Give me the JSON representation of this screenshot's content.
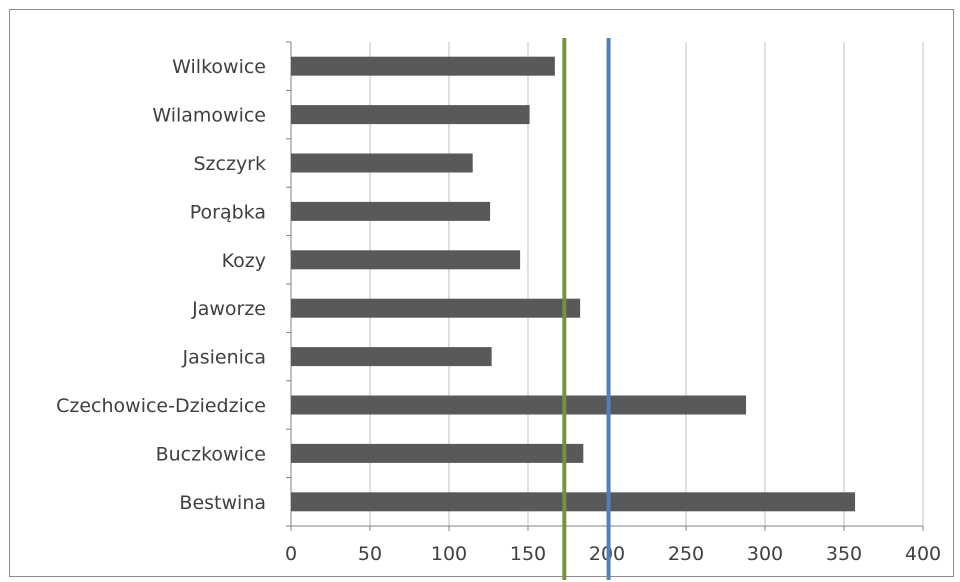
{
  "chart_data": {
    "type": "bar",
    "orientation": "horizontal",
    "title": "",
    "xlabel": "",
    "ylabel": "",
    "categories": [
      "Bestwina",
      "Buczkowice",
      "Czechowice-Dziedzice",
      "Jasienica",
      "Jaworze",
      "Kozy",
      "Porąbka",
      "Szczyrk",
      "Wilamowice",
      "Wilkowice"
    ],
    "series": [
      {
        "values": [
          357,
          185,
          288,
          127,
          183,
          145,
          126,
          115,
          151,
          167
        ]
      }
    ],
    "xlim": [
      0,
      400
    ],
    "xticks": [
      0,
      50,
      100,
      150,
      200,
      250,
      300,
      350,
      400
    ],
    "grid": true,
    "legend": "none",
    "reference_lines": [
      {
        "value": 173,
        "color": "#76923c"
      },
      {
        "value": 201,
        "color": "#4f81bd"
      }
    ],
    "colors": {
      "bar": "#595959",
      "grid": "#bfbfbf",
      "axis": "#808080",
      "text": "#404040"
    }
  }
}
